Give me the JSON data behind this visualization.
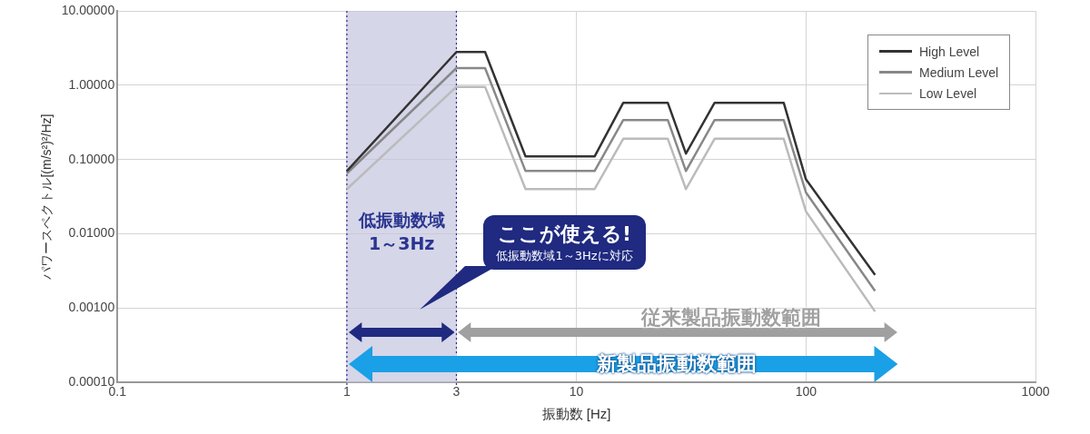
{
  "chart_data": {
    "type": "line",
    "xlabel": "振動数 [Hz]",
    "ylabel": "パワースペクトル[(m/s²)²/Hz]",
    "log": "xy",
    "xlim": [
      0.1,
      1000
    ],
    "xticks": [
      0.1,
      1,
      3,
      10,
      100,
      1000
    ],
    "ylim": [
      0.0001,
      10
    ],
    "yticks": [
      {
        "value": 0.0001,
        "label": "0.00010"
      },
      {
        "value": 0.001,
        "label": "0.00100"
      },
      {
        "value": 0.01,
        "label": "0.01000"
      },
      {
        "value": 0.1,
        "label": "0.10000"
      },
      {
        "value": 1,
        "label": "1.00000"
      },
      {
        "value": 10,
        "label": "10.00000"
      }
    ],
    "grid": true,
    "legend": "top right",
    "marker": "none",
    "line_style": "solid",
    "series": [
      {
        "name": "High Level",
        "color": "#333333",
        "x": [
          1,
          3,
          4,
          6,
          12,
          16,
          25,
          30,
          40,
          80,
          100,
          200
        ],
        "values": [
          0.07,
          2.8,
          2.8,
          0.11,
          0.11,
          0.58,
          0.58,
          0.12,
          0.58,
          0.58,
          0.054,
          0.0028
        ]
      },
      {
        "name": "Medium Level",
        "color": "#888888",
        "x": [
          1,
          3,
          4,
          6,
          12,
          16,
          25,
          30,
          40,
          80,
          100,
          200
        ],
        "values": [
          0.065,
          1.7,
          1.7,
          0.07,
          0.07,
          0.34,
          0.34,
          0.07,
          0.34,
          0.34,
          0.036,
          0.0017
        ]
      },
      {
        "name": "Low Level",
        "color": "#bbbbbb",
        "x": [
          1,
          3,
          4,
          6,
          12,
          16,
          25,
          30,
          40,
          80,
          100,
          200
        ],
        "values": [
          0.04,
          0.95,
          0.95,
          0.04,
          0.04,
          0.19,
          0.19,
          0.04,
          0.19,
          0.19,
          0.02,
          0.0009
        ]
      }
    ],
    "bands": [
      {
        "axis": "x",
        "from": 1,
        "to": 3,
        "label": "低振動数域 1～3Hz",
        "color": "#c4c4e0"
      }
    ],
    "annotations": [
      "ここが使える!",
      "低振動数域1～3Hzに対応",
      "従来製品振動数範囲",
      "新製品振動数範囲"
    ]
  }
}
